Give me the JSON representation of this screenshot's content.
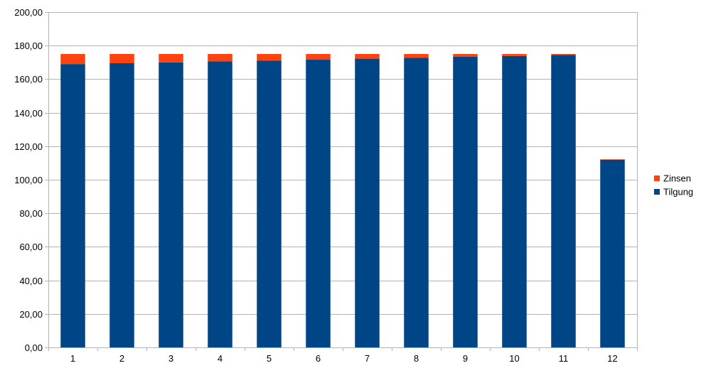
{
  "chart_data": {
    "type": "bar",
    "stacked": true,
    "categories": [
      "1",
      "2",
      "3",
      "4",
      "5",
      "6",
      "7",
      "8",
      "9",
      "10",
      "11",
      "12"
    ],
    "series": [
      {
        "name": "Tilgung",
        "color": "#004586",
        "values": [
          169.0,
          169.5,
          170.0,
          170.6,
          171.1,
          171.6,
          172.2,
          172.7,
          173.3,
          173.8,
          174.4,
          111.9
        ]
      },
      {
        "name": "Zinsen",
        "color": "#ff420e",
        "values": [
          6.0,
          5.5,
          5.0,
          4.4,
          3.9,
          3.4,
          2.8,
          2.3,
          1.7,
          1.2,
          0.6,
          0.3
        ]
      }
    ],
    "ylim": [
      0,
      200
    ],
    "yticks": [
      "0,00",
      "20,00",
      "40,00",
      "60,00",
      "80,00",
      "100,00",
      "120,00",
      "140,00",
      "160,00",
      "180,00",
      "200,00"
    ],
    "ytick_values": [
      0,
      20,
      40,
      60,
      80,
      100,
      120,
      140,
      160,
      180,
      200
    ],
    "grid": true,
    "legend_position": "right",
    "legend": [
      "Zinsen",
      "Tilgung"
    ],
    "title": "",
    "xlabel": "",
    "ylabel": ""
  }
}
